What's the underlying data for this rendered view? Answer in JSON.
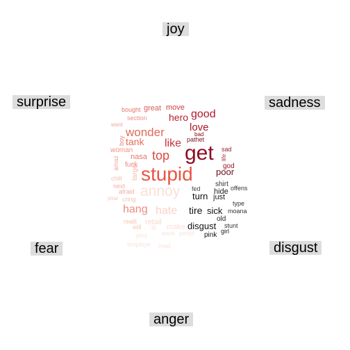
{
  "categories": {
    "joy": "joy",
    "surprise": "surprise",
    "sadness": "sadness",
    "fear": "fear",
    "disgust": "disgust",
    "anger": "anger"
  },
  "words": [
    {
      "text": "bought",
      "color": "#e4776a"
    },
    {
      "text": "great",
      "color": "#d85a55"
    },
    {
      "text": "move",
      "color": "#c73f42"
    },
    {
      "text": "section",
      "color": "#ea8f84"
    },
    {
      "text": "hero",
      "color": "#b21f2c"
    },
    {
      "text": "good",
      "color": "#b0172a"
    },
    {
      "text": "want",
      "color": "#f0a89b"
    },
    {
      "text": "love",
      "color": "#a8152a"
    },
    {
      "text": "wonder",
      "color": "#df6b59"
    },
    {
      "text": "boy",
      "color": "#e68a78"
    },
    {
      "text": "bad",
      "color": "#7a0a1a"
    },
    {
      "text": "tank",
      "color": "#e06d58"
    },
    {
      "text": "like",
      "color": "#c0353d"
    },
    {
      "text": "pathet",
      "color": "#80101c"
    },
    {
      "text": "woman",
      "color": "#ee9484"
    },
    {
      "text": "get",
      "color": "#8e0c22"
    },
    {
      "text": "sad",
      "color": "#a01b2c"
    },
    {
      "text": "top",
      "color": "#d9493f"
    },
    {
      "text": "nasa",
      "color": "#e37867"
    },
    {
      "text": "life",
      "color": "#b02a35"
    },
    {
      "text": "amaz",
      "color": "#f1a694"
    },
    {
      "text": "fuck",
      "color": "#ea8b78"
    },
    {
      "text": "god",
      "color": "#9a1526"
    },
    {
      "text": "target",
      "color": "#f4b8a8"
    },
    {
      "text": "stupid",
      "color": "#e95543"
    },
    {
      "text": "poor",
      "color": "#6d0c17"
    },
    {
      "text": "chill",
      "color": "#f5c0b0"
    },
    {
      "text": "next",
      "color": "#f2b0a0"
    },
    {
      "text": "shirt",
      "color": "#333333"
    },
    {
      "text": "fed",
      "color": "#444444"
    },
    {
      "text": "hide",
      "color": "#222222"
    },
    {
      "text": "offens",
      "color": "#333333"
    },
    {
      "text": "afraid",
      "color": "#f2ad9c"
    },
    {
      "text": "annoy",
      "color": "#fae0d5"
    },
    {
      "text": "cring",
      "color": "#f5c3b3"
    },
    {
      "text": "your",
      "color": "#f5c3b3"
    },
    {
      "text": "turn",
      "color": "#111111"
    },
    {
      "text": "just",
      "color": "#222222"
    },
    {
      "text": "type",
      "color": "#333333"
    },
    {
      "text": "hang",
      "color": "#eb8c7c"
    },
    {
      "text": "hate",
      "color": "#f9d3c6"
    },
    {
      "text": "tire",
      "color": "#111111"
    },
    {
      "text": "sick",
      "color": "#111111"
    },
    {
      "text": "moana",
      "color": "#333333"
    },
    {
      "text": "realli",
      "color": "#f5c5b5"
    },
    {
      "text": "retail",
      "color": "#f9d8cc"
    },
    {
      "text": "old",
      "color": "#222222"
    },
    {
      "text": "will",
      "color": "#f5c5b5"
    },
    {
      "text": "make",
      "color": "#fae0d6"
    },
    {
      "text": "disgust",
      "color": "#111111"
    },
    {
      "text": "stunt",
      "color": "#333333"
    },
    {
      "text": "girl",
      "color": "#222222"
    },
    {
      "text": "fit",
      "color": "#fbe3da"
    },
    {
      "text": "work",
      "color": "#fbe3da"
    },
    {
      "text": "peopl",
      "color": "#fbe3da"
    },
    {
      "text": "pink",
      "color": "#111111"
    },
    {
      "text": "piss",
      "color": "#fbe3da"
    },
    {
      "text": "employe",
      "color": "#fbe3da"
    },
    {
      "text": "mad",
      "color": "#fbe3da"
    }
  ]
}
